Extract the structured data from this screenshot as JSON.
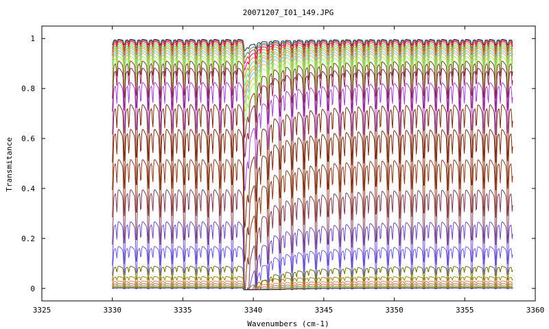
{
  "chart_data": {
    "type": "line",
    "title": "20071207_I01_149.JPG",
    "xlabel": "Wavenumbers (cm-1)",
    "ylabel": "Transmitance",
    "xlim": [
      3325,
      3360
    ],
    "ylim": [
      -0.05,
      1.05
    ],
    "x_ticks": [
      3325,
      3330,
      3335,
      3340,
      3345,
      3350,
      3355,
      3360
    ],
    "y_ticks": [
      0,
      0.2,
      0.4,
      0.6,
      0.8,
      1
    ],
    "x_tick_labels": [
      "3325",
      "3330",
      "3335",
      "3340",
      "3345",
      "3350",
      "3355",
      "3360"
    ],
    "y_tick_labels": [
      "0",
      "0.2",
      "0.4",
      "0.6",
      "0.8",
      "1"
    ],
    "grid": false,
    "legend": "none",
    "x_range_of_data": [
      3330,
      3358.4
    ],
    "absorption_line_spacing_cm1": 0.85,
    "strong_feature_x": 3339.4,
    "series": [
      {
        "baseline": 0.995,
        "depth": 0.02,
        "color": "#1a1a66"
      },
      {
        "baseline": 0.992,
        "depth": 0.03,
        "color": "#3a9a3a"
      },
      {
        "baseline": 0.99,
        "depth": 0.04,
        "color": "#cc3333"
      },
      {
        "baseline": 0.985,
        "depth": 0.05,
        "color": "#e6007e"
      },
      {
        "baseline": 0.978,
        "depth": 0.06,
        "color": "#cc9900"
      },
      {
        "baseline": 0.97,
        "depth": 0.07,
        "color": "#66cc99"
      },
      {
        "baseline": 0.962,
        "depth": 0.08,
        "color": "#99cc33"
      },
      {
        "baseline": 0.955,
        "depth": 0.085,
        "color": "#ff9966"
      },
      {
        "baseline": 0.945,
        "depth": 0.09,
        "color": "#66ccff"
      },
      {
        "baseline": 0.935,
        "depth": 0.1,
        "color": "#cccc33"
      },
      {
        "baseline": 0.92,
        "depth": 0.11,
        "color": "#99ff66"
      },
      {
        "baseline": 0.9,
        "depth": 0.13,
        "color": "#7a3a1a"
      },
      {
        "baseline": 0.87,
        "depth": 0.15,
        "color": "#8b2252"
      },
      {
        "baseline": 0.81,
        "depth": 0.18,
        "color": "#a040d0"
      },
      {
        "baseline": 0.72,
        "depth": 0.2,
        "color": "#7a2a10"
      },
      {
        "baseline": 0.62,
        "depth": 0.21,
        "color": "#7a2a10"
      },
      {
        "baseline": 0.5,
        "depth": 0.2,
        "color": "#8b3a1a"
      },
      {
        "baseline": 0.38,
        "depth": 0.19,
        "color": "#7a3a5a"
      },
      {
        "baseline": 0.255,
        "depth": 0.15,
        "color": "#6a4ac0"
      },
      {
        "baseline": 0.16,
        "depth": 0.1,
        "color": "#6a5ae0"
      },
      {
        "baseline": 0.085,
        "depth": 0.05,
        "color": "#6a6a00"
      },
      {
        "baseline": 0.045,
        "depth": 0.03,
        "color": "#a08000"
      },
      {
        "baseline": 0.028,
        "depth": 0.02,
        "color": "#e08060"
      },
      {
        "baseline": 0.018,
        "depth": 0.014,
        "color": "#c06040"
      },
      {
        "baseline": 0.01,
        "depth": 0.008,
        "color": "#3a9a3a"
      },
      {
        "baseline": 0.005,
        "depth": 0.005,
        "color": "#cc9900"
      },
      {
        "baseline": 0.002,
        "depth": 0.003,
        "color": "#1a1a66"
      }
    ]
  }
}
